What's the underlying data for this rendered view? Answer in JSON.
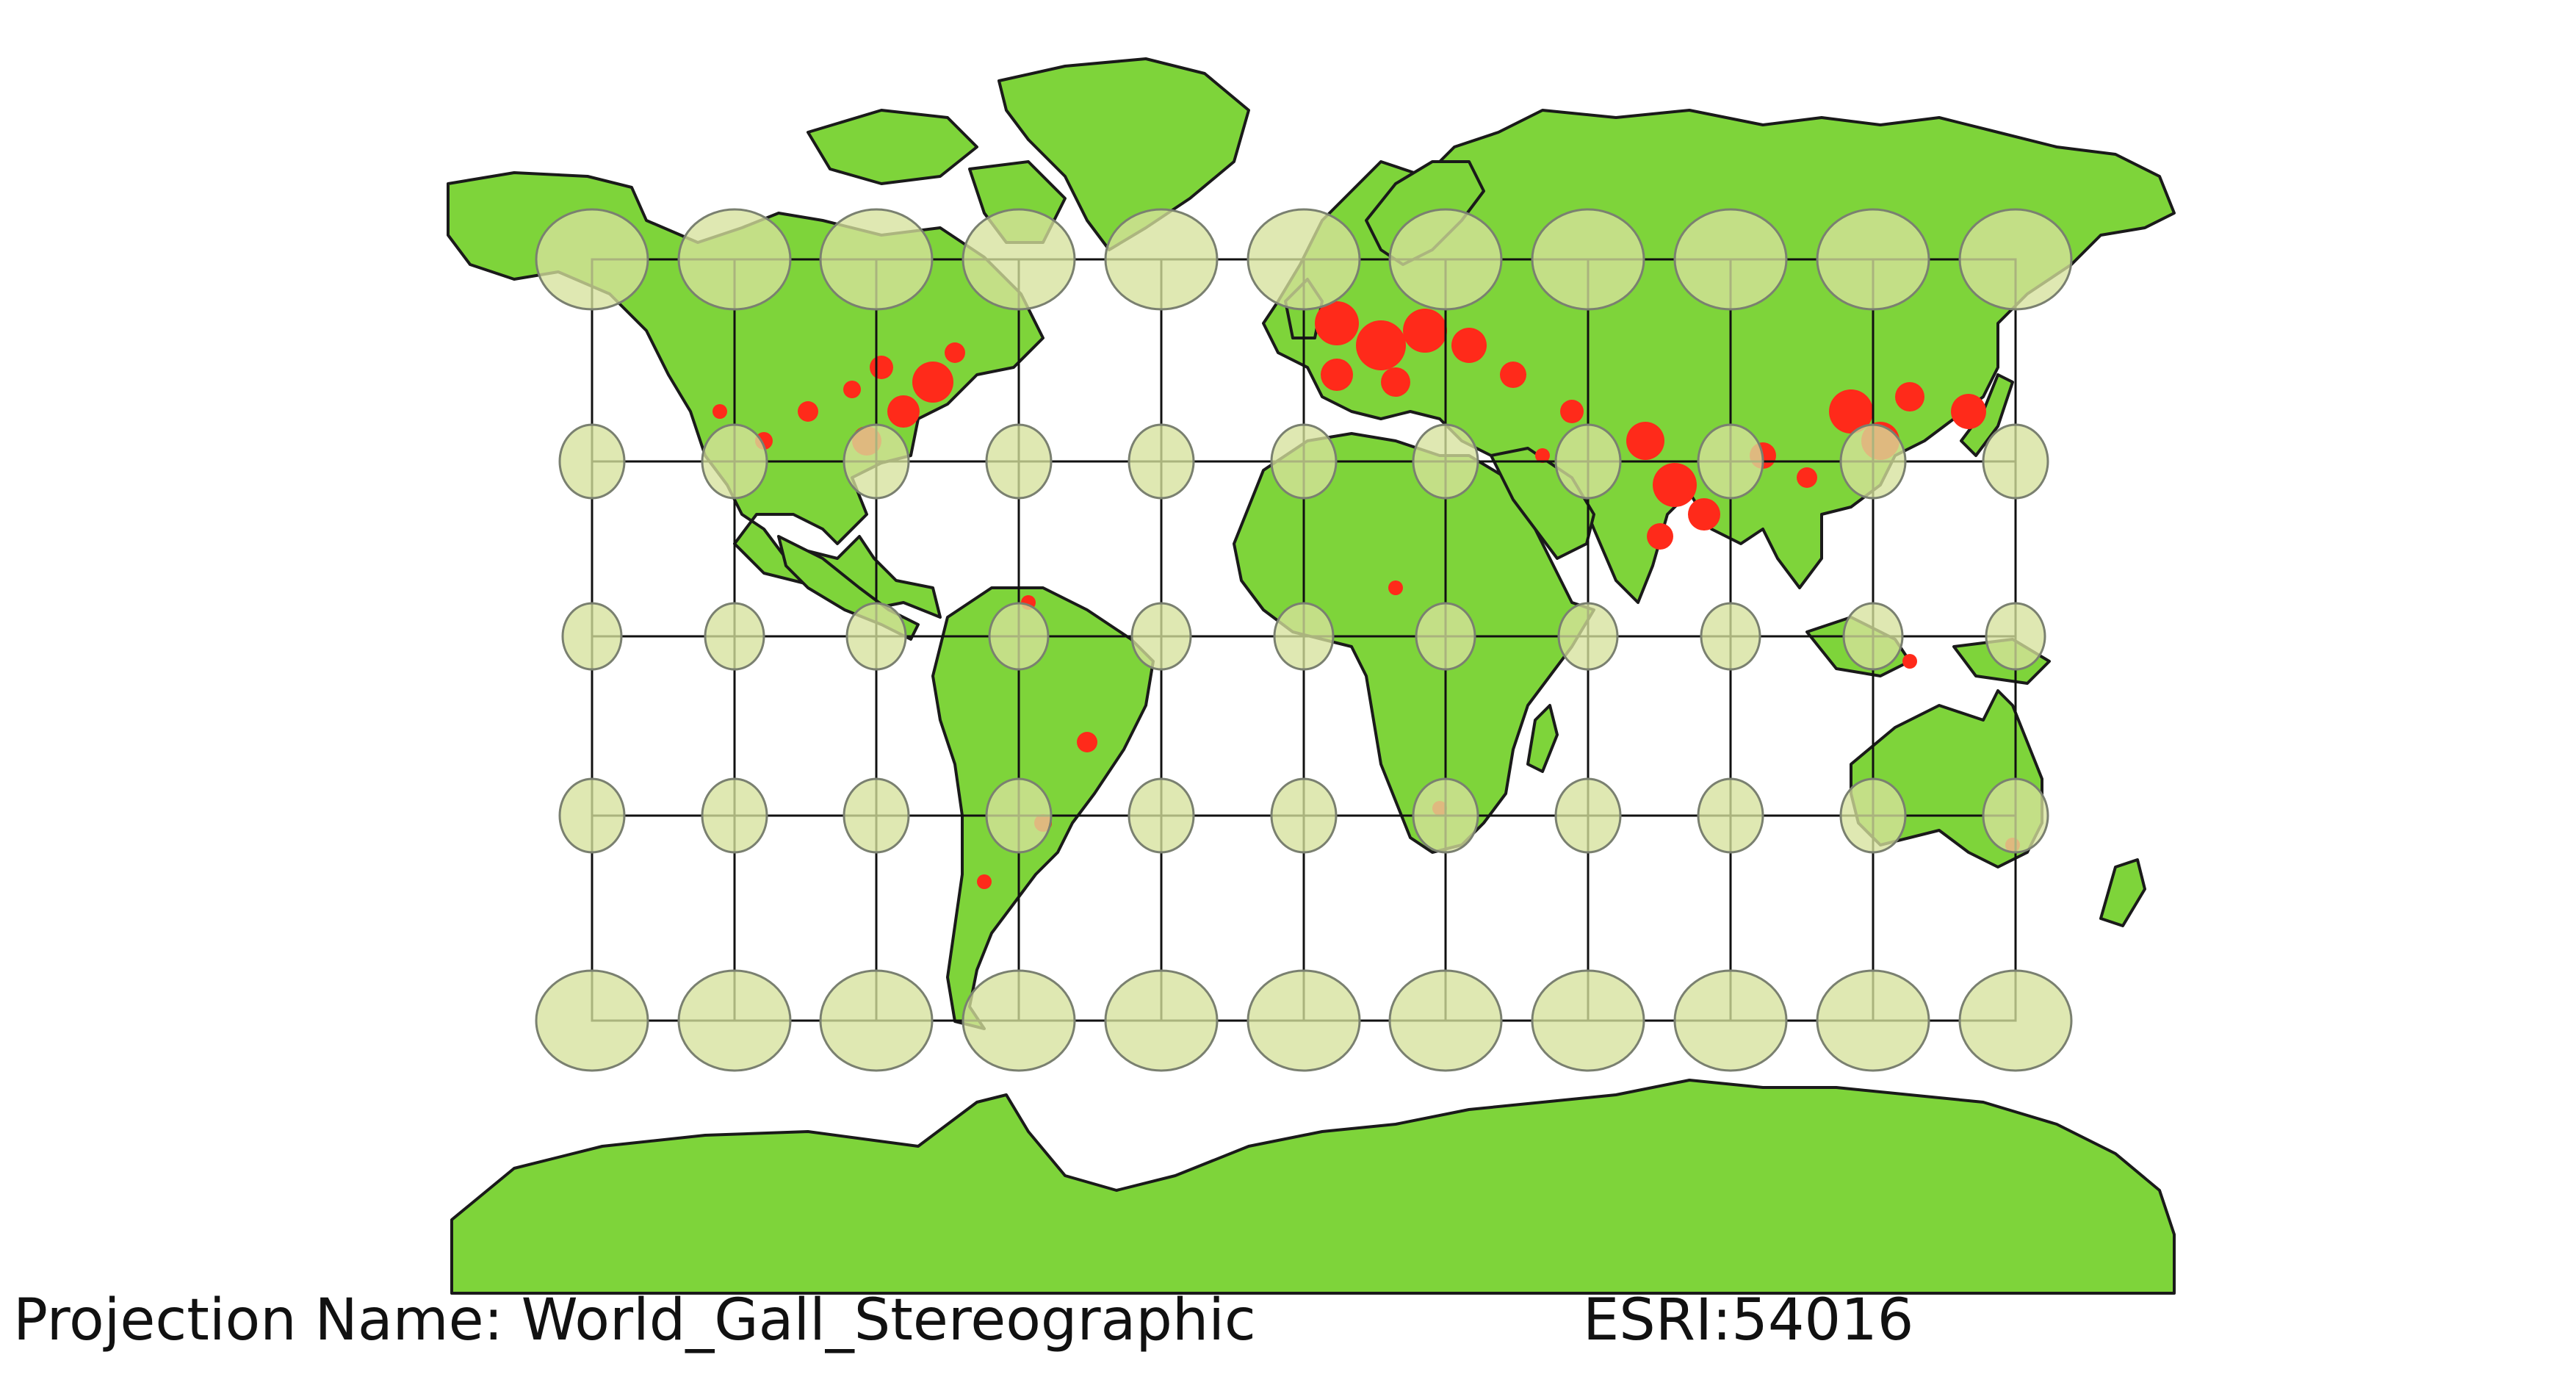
{
  "map": {
    "projection_label": "Projection Name: World_Gall_Stereographic",
    "crs_code": "ESRI:54016",
    "colors": {
      "land": "#7ed43a",
      "coastline": "#1a1a1a",
      "places": "#ff2a1a",
      "tissot": "#d6e29c",
      "graticule": "#111111"
    },
    "layers": [
      "land",
      "populated places",
      "Tissot indicatrix",
      "graticule"
    ]
  }
}
